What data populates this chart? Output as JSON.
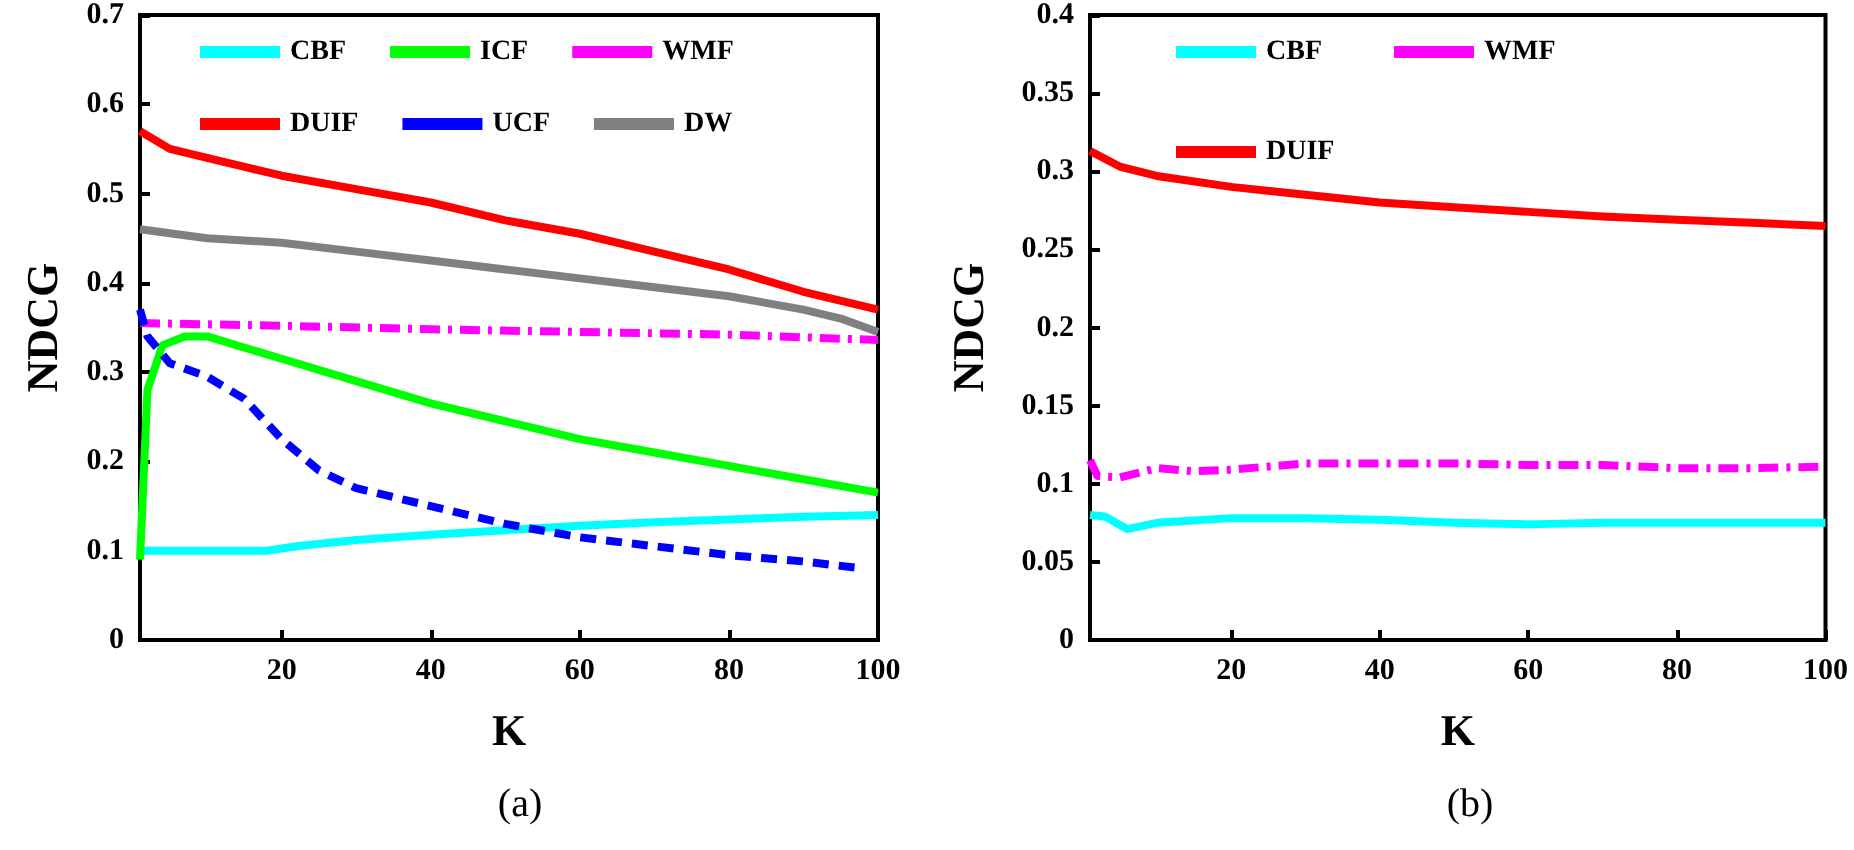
{
  "chart_data": [
    {
      "type": "line",
      "xlabel": "K",
      "ylabel": "NDCG",
      "annotations": [
        "(a)"
      ],
      "xlim": [
        1,
        100
      ],
      "xticks": [
        20,
        40,
        60,
        80,
        100
      ],
      "ylim": [
        0,
        0.7
      ],
      "yticks": [
        0,
        0.1,
        0.2,
        0.3,
        0.4,
        0.5,
        0.6,
        0.7
      ],
      "grid": false,
      "legend": "top",
      "marker": "none",
      "series": [
        {
          "name": "CBF",
          "color": "#00ffff",
          "line_style": "solid",
          "x": [
            1,
            10,
            18,
            22,
            30,
            40,
            50,
            60,
            70,
            80,
            90,
            100
          ],
          "values": [
            0.1,
            0.1,
            0.1,
            0.105,
            0.112,
            0.118,
            0.123,
            0.128,
            0.132,
            0.135,
            0.138,
            0.14
          ]
        },
        {
          "name": "ICF",
          "color": "#00ff00",
          "line_style": "solid",
          "x": [
            1,
            2,
            4,
            7,
            10,
            20,
            30,
            40,
            50,
            60,
            70,
            80,
            90,
            100
          ],
          "values": [
            0.09,
            0.28,
            0.33,
            0.34,
            0.34,
            0.315,
            0.29,
            0.265,
            0.245,
            0.225,
            0.21,
            0.195,
            0.18,
            0.165
          ]
        },
        {
          "name": "WMF",
          "color": "#ff00ff",
          "line_style": "dashdot",
          "x": [
            1,
            20,
            40,
            60,
            80,
            100
          ],
          "values": [
            0.355,
            0.352,
            0.348,
            0.345,
            0.342,
            0.336
          ]
        },
        {
          "name": "DUIF",
          "color": "#ff0000",
          "line_style": "solid",
          "x": [
            1,
            5,
            10,
            20,
            30,
            40,
            50,
            60,
            70,
            80,
            90,
            100
          ],
          "values": [
            0.57,
            0.55,
            0.54,
            0.52,
            0.505,
            0.49,
            0.47,
            0.455,
            0.435,
            0.415,
            0.39,
            0.37
          ]
        },
        {
          "name": "UCF",
          "color": "#0000ff",
          "line_style": "dashed",
          "x": [
            1,
            2,
            5,
            10,
            15,
            20,
            25,
            30,
            40,
            50,
            60,
            70,
            80,
            90,
            98
          ],
          "values": [
            0.37,
            0.34,
            0.31,
            0.295,
            0.27,
            0.225,
            0.19,
            0.17,
            0.15,
            0.13,
            0.115,
            0.105,
            0.095,
            0.088,
            0.08
          ]
        },
        {
          "name": "DW",
          "color": "#808080",
          "line_style": "solid",
          "x": [
            1,
            10,
            20,
            30,
            40,
            50,
            60,
            70,
            80,
            90,
            95,
            100
          ],
          "values": [
            0.46,
            0.45,
            0.445,
            0.435,
            0.425,
            0.415,
            0.405,
            0.395,
            0.385,
            0.37,
            0.36,
            0.345
          ]
        }
      ]
    },
    {
      "type": "line",
      "xlabel": "K",
      "ylabel": "NDCG",
      "annotations": [
        "(b)"
      ],
      "xlim": [
        1,
        100
      ],
      "xticks": [
        20,
        40,
        60,
        80,
        100
      ],
      "ylim": [
        0,
        0.4
      ],
      "yticks": [
        0,
        0.05,
        0.1,
        0.15,
        0.2,
        0.25,
        0.3,
        0.35,
        0.4
      ],
      "grid": false,
      "legend": "top",
      "marker": "none",
      "series": [
        {
          "name": "CBF",
          "color": "#00ffff",
          "line_style": "solid",
          "x": [
            1,
            3,
            6,
            10,
            20,
            30,
            40,
            50,
            60,
            70,
            100
          ],
          "values": [
            0.08,
            0.079,
            0.071,
            0.075,
            0.078,
            0.078,
            0.077,
            0.075,
            0.074,
            0.075,
            0.075
          ]
        },
        {
          "name": "WMF",
          "color": "#ff00ff",
          "line_style": "dashdot",
          "x": [
            1,
            2,
            5,
            10,
            15,
            20,
            30,
            40,
            50,
            60,
            70,
            80,
            90,
            100
          ],
          "values": [
            0.115,
            0.105,
            0.104,
            0.11,
            0.108,
            0.109,
            0.113,
            0.113,
            0.113,
            0.112,
            0.112,
            0.11,
            0.11,
            0.111
          ]
        },
        {
          "name": "DUIF",
          "color": "#ff0000",
          "line_style": "solid",
          "x": [
            1,
            5,
            10,
            20,
            30,
            40,
            50,
            60,
            70,
            80,
            90,
            100
          ],
          "values": [
            0.313,
            0.303,
            0.297,
            0.29,
            0.285,
            0.28,
            0.277,
            0.274,
            0.271,
            0.269,
            0.267,
            0.265
          ]
        }
      ]
    }
  ]
}
